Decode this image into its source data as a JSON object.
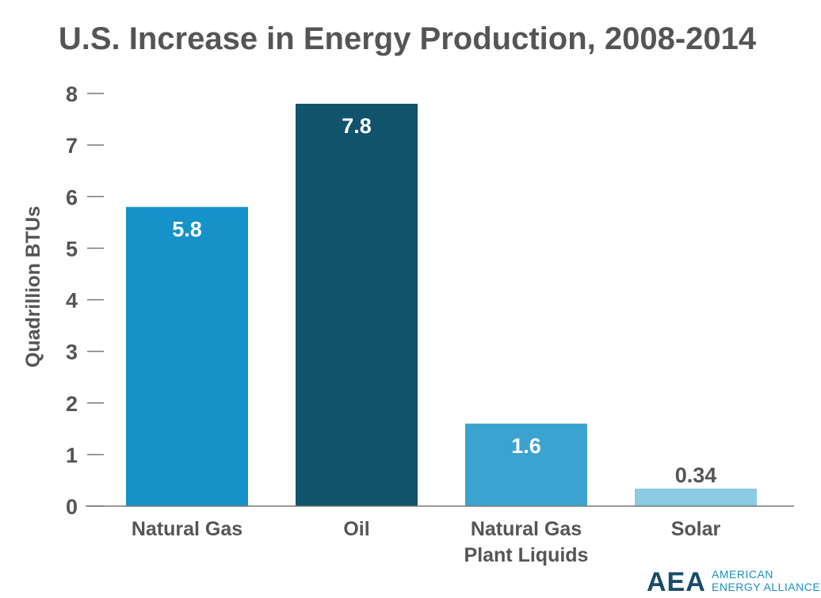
{
  "chart_data": {
    "type": "bar",
    "title": "U.S. Increase in Energy Production, 2008-2014",
    "ylabel": "Quadrillion BTUs",
    "xlabel": "",
    "ylim": [
      0,
      8
    ],
    "yticks": [
      0,
      1,
      2,
      3,
      4,
      5,
      6,
      7,
      8
    ],
    "grid": false,
    "categories": [
      [
        "Natural Gas"
      ],
      [
        "Oil"
      ],
      [
        "Natural Gas",
        "Plant Liquids"
      ],
      [
        "Solar"
      ]
    ],
    "values": [
      5.8,
      7.8,
      1.6,
      0.34
    ],
    "data_labels": [
      "5.8",
      "7.8",
      "1.6",
      "0.34"
    ],
    "bar_colors": [
      "#1592c8",
      "#11536a",
      "#3aa3d0",
      "#8ccbe3"
    ],
    "label_colors": [
      "#ffffff",
      "#ffffff",
      "#ffffff",
      "#555555"
    ]
  },
  "logo": {
    "mark": "AEA",
    "line1": "AMERICAN",
    "line2": "ENERGY ALLIANCE"
  }
}
